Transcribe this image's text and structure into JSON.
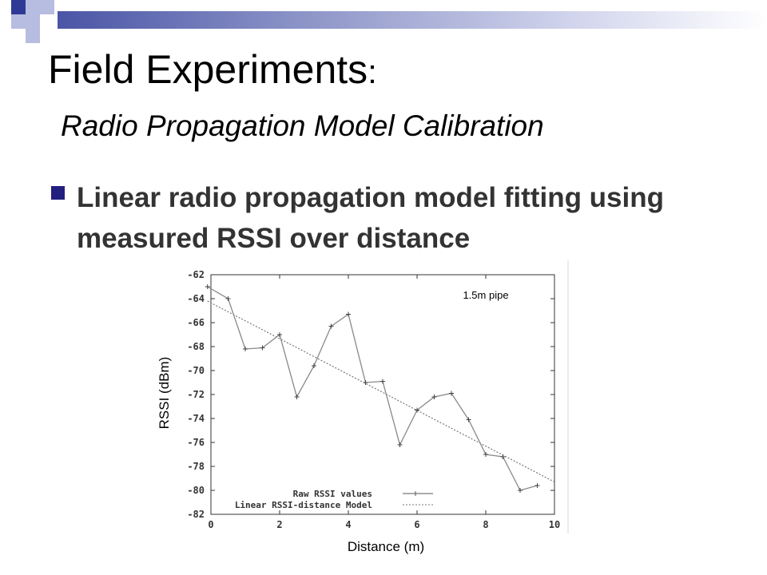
{
  "slide": {
    "title": "Field Experiments",
    "title_colon": ":",
    "subtitle": "Radio Propagation Model Calibration",
    "bullet": "Linear radio propagation model fitting using measured RSSI over distance"
  },
  "colors": {
    "accent": "#231f7f",
    "deco_dark": "#4a55a6",
    "deco_light": "#b7bde0"
  },
  "chart_data": {
    "type": "line",
    "annotation": "1.5m pipe",
    "xlabel": "Distance (m)",
    "ylabel": "RSSI (dBm)",
    "xlim": [
      0,
      10
    ],
    "ylim": [
      -82,
      -62
    ],
    "xticks": [
      0,
      2,
      4,
      6,
      8,
      10
    ],
    "yticks": [
      -62,
      -64,
      -66,
      -68,
      -70,
      -72,
      -74,
      -76,
      -78,
      -80,
      -82
    ],
    "legend_position": "bottom-left",
    "grid": false,
    "series": [
      {
        "name": "Raw RSSI values",
        "style": "line-points",
        "x": [
          -0.1,
          0.5,
          1.0,
          1.5,
          2.0,
          2.5,
          3.0,
          3.5,
          4.0,
          4.5,
          5.0,
          5.5,
          6.0,
          6.5,
          7.0,
          7.5,
          8.0,
          8.5,
          9.0,
          9.5
        ],
        "y": [
          -63.0,
          -64.0,
          -68.2,
          -68.1,
          -67.0,
          -72.2,
          -69.6,
          -66.3,
          -65.3,
          -71.0,
          -70.9,
          -76.2,
          -73.3,
          -72.2,
          -71.9,
          -74.1,
          -77.0,
          -77.2,
          -80.0,
          -79.6
        ]
      },
      {
        "name": "Linear RSSI-distance Model",
        "style": "dashed",
        "x": [
          -0.1,
          10.0
        ],
        "y": [
          -64.2,
          -79.3
        ]
      }
    ]
  }
}
